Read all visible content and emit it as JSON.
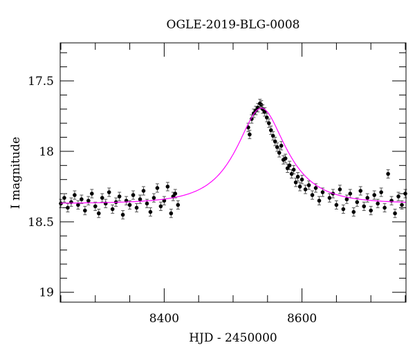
{
  "chart_data": {
    "type": "scatter",
    "title": "OGLE-2019-BLG-0008",
    "xlabel": "HJD - 2450000",
    "ylabel": "I magnitude",
    "xlim": [
      8249,
      8751
    ],
    "ylim": [
      19.07,
      17.23
    ],
    "y_inverted": true,
    "x_ticks": [
      8400,
      8600
    ],
    "x_tick_labels": [
      "8400",
      "8600"
    ],
    "x_minor_step": 50,
    "y_ticks": [
      17.5,
      18,
      18.5,
      19
    ],
    "y_tick_labels": [
      "17.5",
      "18",
      "18.5",
      "19"
    ],
    "y_minor_step": 0.1,
    "grid": false,
    "colors": {
      "points": "#000000",
      "errorbars": "#555555",
      "model": "#ff00ff"
    },
    "model": {
      "name": "microlensing fit",
      "t0": 8541,
      "u0": 0.55,
      "tE": 60,
      "fs": 0.85,
      "baseline_mag": 18.37
    },
    "error_bar": 0.03,
    "points": [
      [
        8250,
        18.37
      ],
      [
        8255,
        18.33
      ],
      [
        8260,
        18.4
      ],
      [
        8265,
        18.36
      ],
      [
        8270,
        18.31
      ],
      [
        8275,
        18.38
      ],
      [
        8280,
        18.34
      ],
      [
        8285,
        18.42
      ],
      [
        8290,
        18.35
      ],
      [
        8295,
        18.3
      ],
      [
        8300,
        18.39
      ],
      [
        8305,
        18.44
      ],
      [
        8310,
        18.33
      ],
      [
        8315,
        18.37
      ],
      [
        8320,
        18.29
      ],
      [
        8325,
        18.41
      ],
      [
        8330,
        18.36
      ],
      [
        8335,
        18.32
      ],
      [
        8340,
        18.45
      ],
      [
        8345,
        18.35
      ],
      [
        8350,
        18.38
      ],
      [
        8355,
        18.31
      ],
      [
        8360,
        18.4
      ],
      [
        8365,
        18.34
      ],
      [
        8370,
        18.28
      ],
      [
        8375,
        18.37
      ],
      [
        8380,
        18.43
      ],
      [
        8385,
        18.33
      ],
      [
        8390,
        18.26
      ],
      [
        8395,
        18.39
      ],
      [
        8400,
        18.35
      ],
      [
        8405,
        18.25
      ],
      [
        8410,
        18.44
      ],
      [
        8413,
        18.32
      ],
      [
        8416,
        18.3
      ],
      [
        8420,
        18.38
      ],
      [
        8522,
        17.83
      ],
      [
        8524,
        17.88
      ],
      [
        8527,
        17.77
      ],
      [
        8530,
        17.73
      ],
      [
        8533,
        17.71
      ],
      [
        8536,
        17.69
      ],
      [
        8539,
        17.66
      ],
      [
        8541,
        17.67
      ],
      [
        8543,
        17.7
      ],
      [
        8546,
        17.72
      ],
      [
        8549,
        17.76
      ],
      [
        8552,
        17.8
      ],
      [
        8555,
        17.85
      ],
      [
        8558,
        17.89
      ],
      [
        8561,
        17.93
      ],
      [
        8564,
        17.97
      ],
      [
        8567,
        18.01
      ],
      [
        8570,
        17.96
      ],
      [
        8573,
        18.06
      ],
      [
        8576,
        18.05
      ],
      [
        8579,
        18.12
      ],
      [
        8582,
        18.1
      ],
      [
        8585,
        18.16
      ],
      [
        8588,
        18.13
      ],
      [
        8591,
        18.22
      ],
      [
        8594,
        18.18
      ],
      [
        8597,
        18.25
      ],
      [
        8600,
        18.2
      ],
      [
        8605,
        18.27
      ],
      [
        8610,
        18.24
      ],
      [
        8615,
        18.31
      ],
      [
        8620,
        18.26
      ],
      [
        8625,
        18.35
      ],
      [
        8630,
        18.29
      ],
      [
        8640,
        18.33
      ],
      [
        8645,
        18.3
      ],
      [
        8650,
        18.38
      ],
      [
        8655,
        18.27
      ],
      [
        8660,
        18.41
      ],
      [
        8665,
        18.34
      ],
      [
        8670,
        18.3
      ],
      [
        8675,
        18.43
      ],
      [
        8680,
        18.36
      ],
      [
        8685,
        18.28
      ],
      [
        8690,
        18.39
      ],
      [
        8695,
        18.33
      ],
      [
        8700,
        18.42
      ],
      [
        8705,
        18.31
      ],
      [
        8710,
        18.37
      ],
      [
        8715,
        18.29
      ],
      [
        8720,
        18.4
      ],
      [
        8725,
        18.16
      ],
      [
        8730,
        18.35
      ],
      [
        8735,
        18.44
      ],
      [
        8740,
        18.32
      ],
      [
        8745,
        18.38
      ],
      [
        8750,
        18.3
      ]
    ]
  }
}
